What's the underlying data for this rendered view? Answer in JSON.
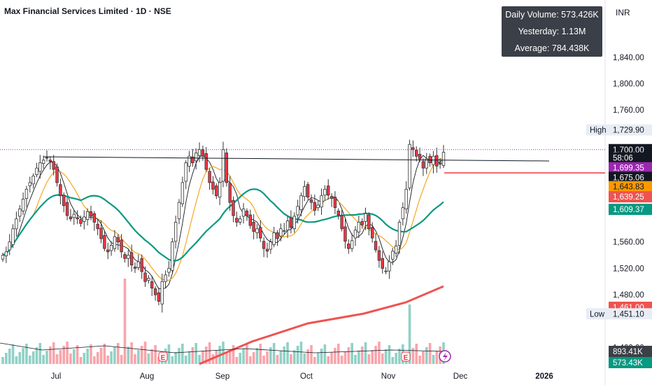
{
  "header": {
    "title": "Max Financial Services Limited · 1D · NSE",
    "currency": "INR"
  },
  "volume_box": {
    "daily": "Daily Volume: 573.426K",
    "yesterday": "Yesterday: 1.13M",
    "average": "Average: 784.438K"
  },
  "chart_data": {
    "type": "candlestick",
    "title": "Max Financial Services Limited · 1D · NSE",
    "ylim": [
      1375,
      1895
    ],
    "y_ticks": [
      "1,840.00",
      "1,800.00",
      "1,760.00",
      "1,560.00",
      "1,520.00",
      "1,480.00",
      "1,400.00"
    ],
    "x_ticks": [
      "Jul",
      "Aug",
      "Sep",
      "Oct",
      "Nov",
      "Dec",
      "2026"
    ],
    "price_tags": [
      {
        "label": "High",
        "value": "1,729.90",
        "price": 1729.9,
        "color": "#e8edf5",
        "text": "#131722"
      },
      {
        "label": "",
        "value": "1,700.00",
        "price": 1700.0,
        "color": "#131722",
        "text": "#ffffff"
      },
      {
        "label": "",
        "value": "58:06",
        "price": 1687.5,
        "color": "#131722",
        "text": "#ffffff"
      },
      {
        "label": "",
        "value": "1,699.35",
        "price": 1672.5,
        "color": "#9c27b0",
        "text": "#ffffff"
      },
      {
        "label": "",
        "value": "1,675.06",
        "price": 1658.0,
        "color": "#131722",
        "text": "#ffffff"
      },
      {
        "label": "",
        "value": "1,643.83",
        "price": 1643.8,
        "color": "#ff9800",
        "text": "#131722"
      },
      {
        "label": "",
        "value": "1,639.25",
        "price": 1628.5,
        "color": "#ef5350",
        "text": "#ffffff"
      },
      {
        "label": "",
        "value": "1,609.37",
        "price": 1609.4,
        "color": "#089981",
        "text": "#ffffff"
      },
      {
        "label": "",
        "value": "1,461.00",
        "price": 1461.0,
        "color": "#ef5350",
        "text": "#ffffff"
      },
      {
        "label": "Low",
        "value": "1,451.10",
        "price": 1451.1,
        "color": "#e8edf5",
        "text": "#131722"
      }
    ],
    "volume_tags": [
      "893.41K",
      "573.43K"
    ],
    "closes": [
      1540,
      1545,
      1560,
      1580,
      1595,
      1610,
      1625,
      1640,
      1650,
      1660,
      1672,
      1680,
      1684,
      1688,
      1682,
      1670,
      1650,
      1630,
      1615,
      1600,
      1595,
      1602,
      1595,
      1588,
      1598,
      1606,
      1599,
      1590,
      1580,
      1565,
      1550,
      1545,
      1555,
      1568,
      1560,
      1545,
      1535,
      1540,
      1525,
      1520,
      1530,
      1515,
      1500,
      1505,
      1490,
      1480,
      1470,
      1500,
      1510,
      1520,
      1560,
      1590,
      1620,
      1650,
      1680,
      1690,
      1680,
      1695,
      1700,
      1690,
      1670,
      1650,
      1640,
      1630,
      1650,
      1700,
      1650,
      1620,
      1600,
      1590,
      1595,
      1610,
      1600,
      1585,
      1576,
      1580,
      1566,
      1550,
      1546,
      1560,
      1574,
      1565,
      1580,
      1577,
      1592,
      1582,
      1599,
      1614,
      1630,
      1644,
      1628,
      1620,
      1608,
      1616,
      1630,
      1640,
      1631,
      1626,
      1612,
      1601,
      1580,
      1561,
      1550,
      1562,
      1578,
      1590,
      1586,
      1603,
      1580,
      1566,
      1548,
      1532,
      1520,
      1516,
      1530,
      1546,
      1554,
      1590,
      1612,
      1640,
      1708,
      1700,
      1690,
      1686,
      1672,
      1686,
      1680,
      1690,
      1675,
      1678,
      1696
    ]
  }
}
